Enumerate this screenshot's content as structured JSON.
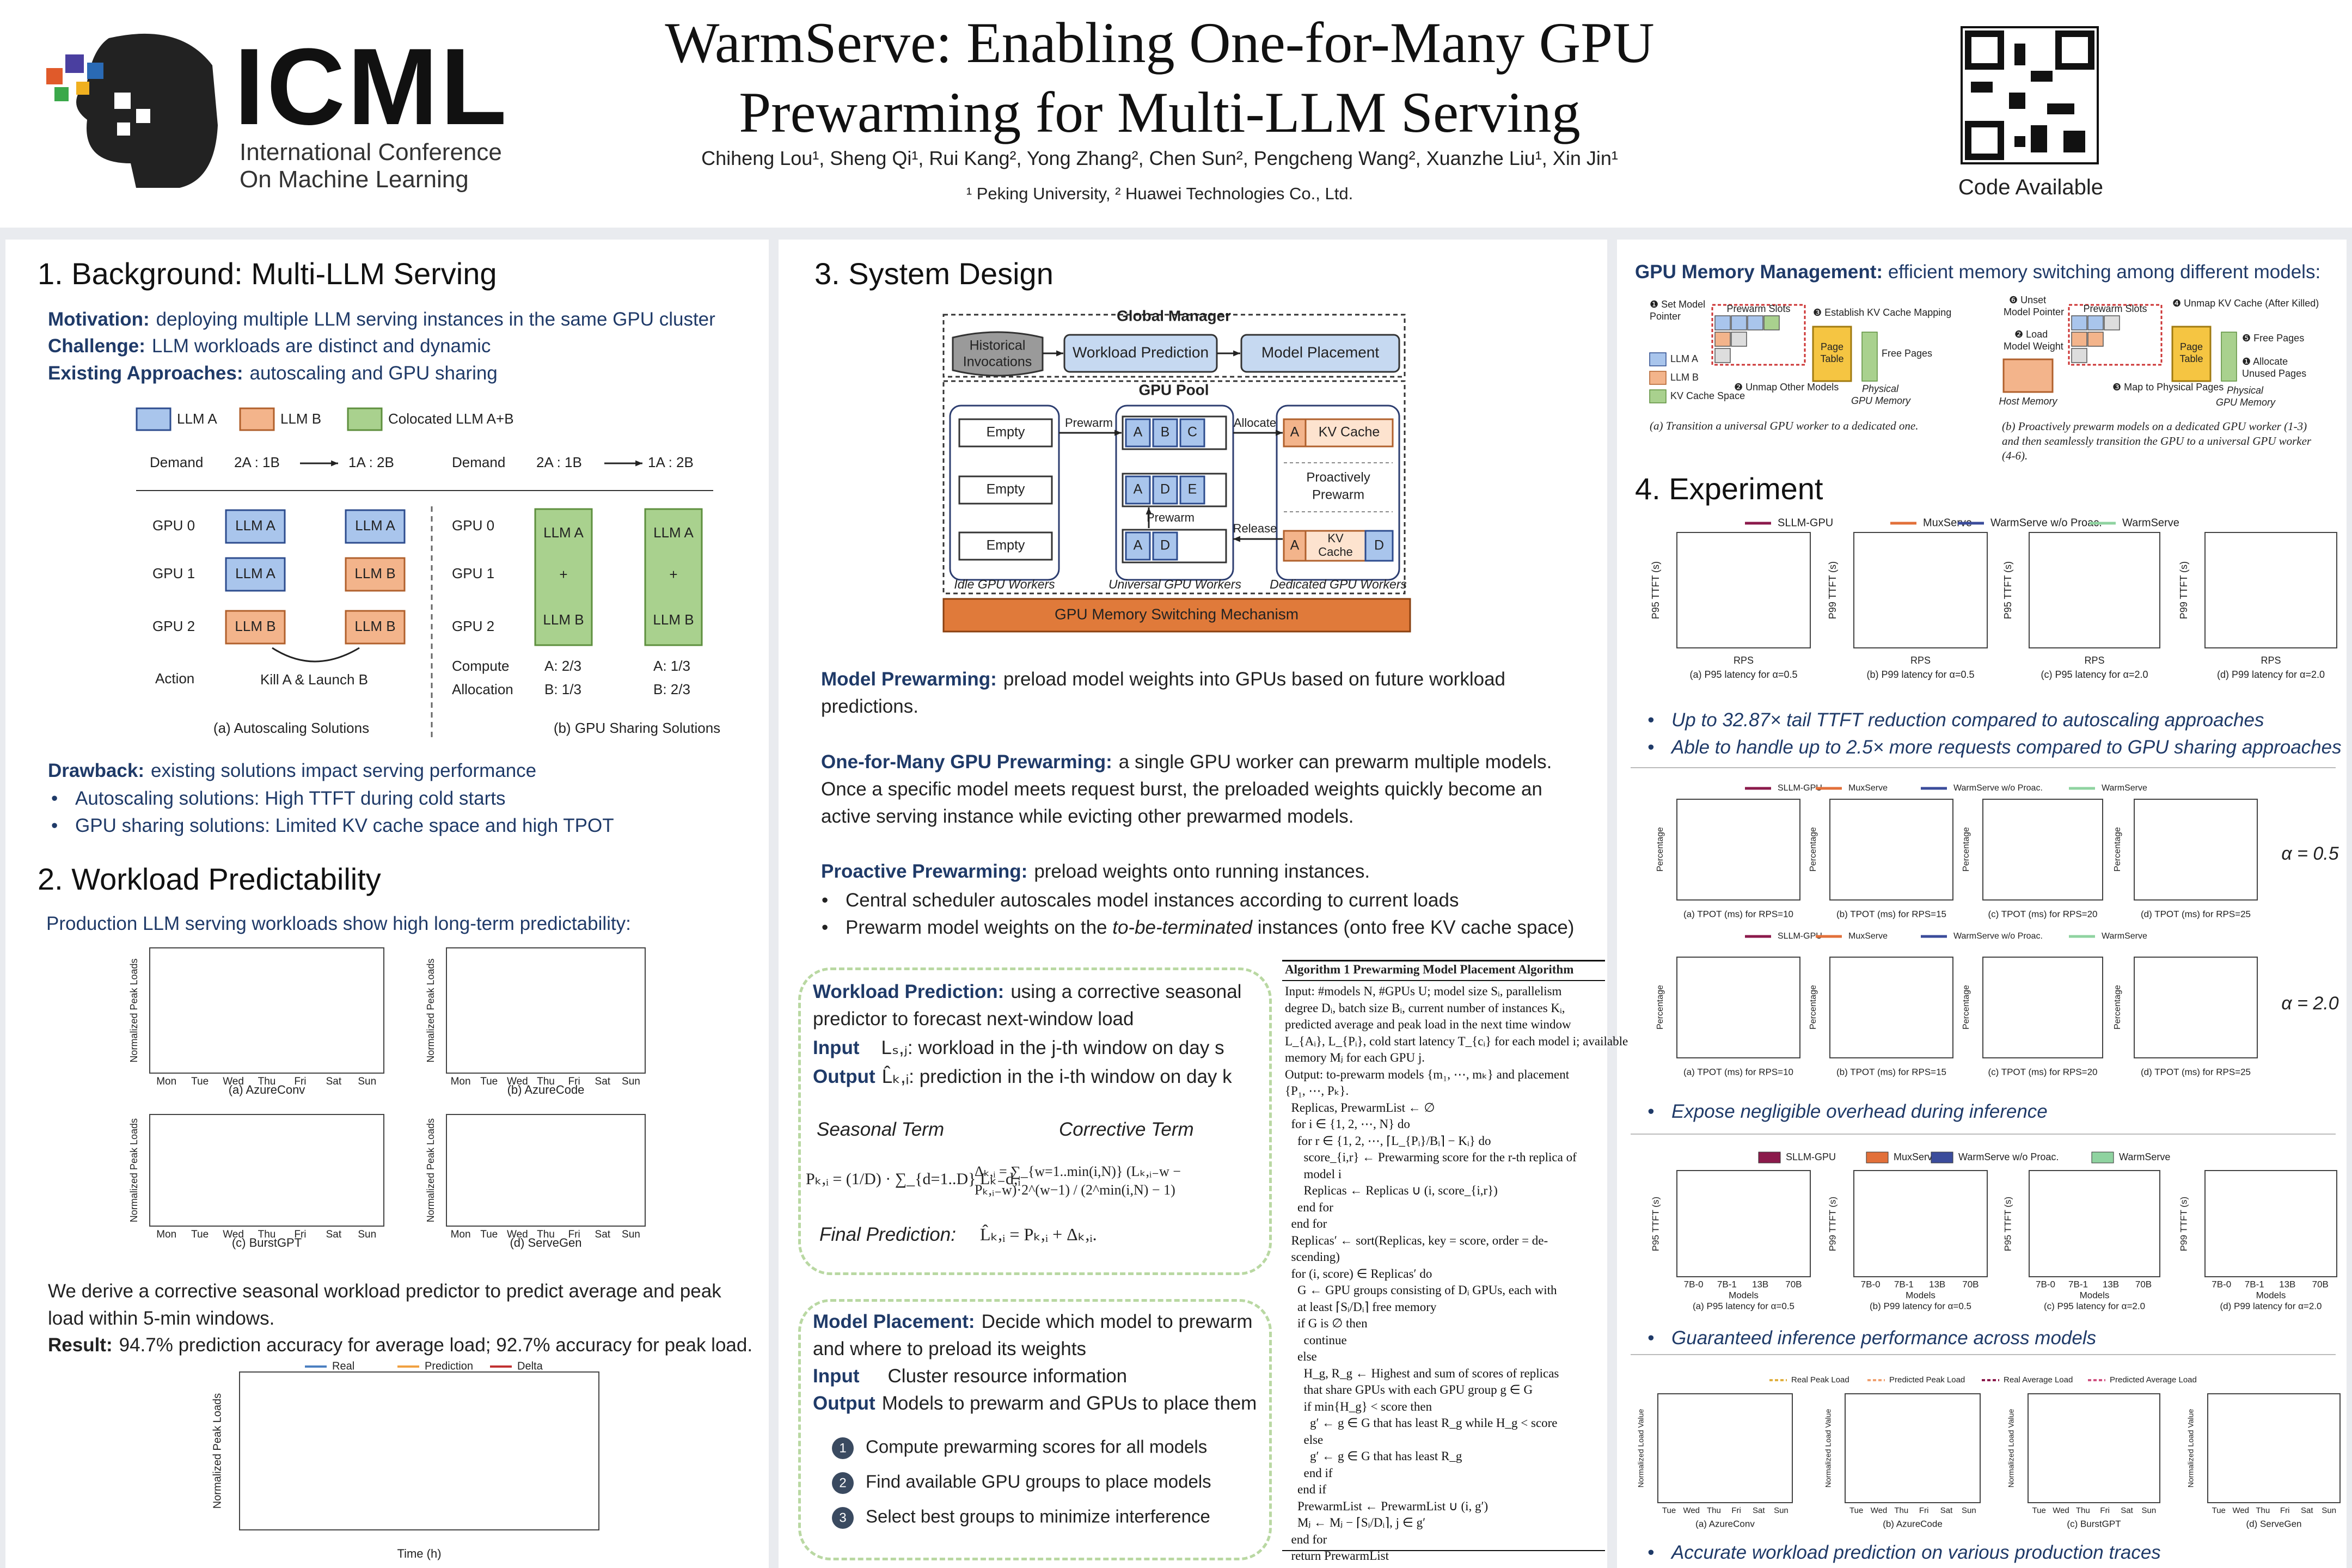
{
  "header": {
    "logo": "ICML",
    "logo_sub": [
      "International Conference",
      "On Machine Learning"
    ],
    "title": [
      "WarmServe: Enabling One-for-Many GPU",
      "Prewarming for Multi-LLM Serving"
    ],
    "authors": "Chiheng Lou¹, Sheng Qi¹, Rui Kang², Yong Zhang², Chen Sun², Pengcheng Wang², Xuanzhe Liu¹, Xin Jin¹",
    "affiliations": "¹ Peking University, ² Huawei Technologies Co., Ltd.",
    "code": "Code Available"
  },
  "background": {
    "heading": "1. Background: Multi-LLM Serving",
    "intro": [
      {
        "label": "Motivation:",
        "text": "deploying multiple LLM serving instances in the same GPU cluster"
      },
      {
        "label": "Challenge:",
        "text": "LLM workloads are distinct and dynamic"
      },
      {
        "label": "Existing Approaches:",
        "text": "autoscaling and GPU sharing"
      }
    ],
    "figure": {
      "legend": [
        "LLM A",
        "LLM B",
        "Colocated LLM A+B"
      ],
      "demand": "Demand",
      "ratio_from": "2A : 1B",
      "ratio_to": "1A : 2B",
      "gpus": [
        "GPU 0",
        "GPU 1",
        "GPU 2"
      ],
      "plus": "+",
      "action": "Action",
      "kill": "Kill A & Launch B",
      "compute": "Compute",
      "allocation": "Allocation",
      "alloc_from": [
        "A: 2/3",
        "B: 1/3"
      ],
      "alloc_to": [
        "A: 1/3",
        "B: 2/3"
      ],
      "captions": [
        "(a) Autoscaling Solutions",
        "(b) GPU Sharing Solutions"
      ]
    },
    "drawback": {
      "label": "Drawback:",
      "text": "existing solutions impact serving performance"
    },
    "bullets": [
      "Autoscaling solutions: High TTFT during cold starts",
      "GPU sharing solutions: Limited KV cache space and high TPOT"
    ]
  },
  "workload": {
    "heading": "2. Workload Predictability",
    "intro": "Production LLM serving workloads show high long-term predictability:",
    "y_label": "Normalized Peak Loads",
    "days": [
      "Mon",
      "Tue",
      "Wed",
      "Thu",
      "Fri",
      "Sat",
      "Sun"
    ],
    "captions": [
      "(a) AzureConv",
      "(b) AzureCode",
      "(c) BurstGPT",
      "(d) ServeGen"
    ],
    "para": "We derive a corrective seasonal workload predictor to predict average and peak load within 5-min windows.",
    "result": {
      "label": "Result:",
      "text": "94.7% prediction accuracy for average load; 92.7% accuracy for peak load."
    },
    "chart": {
      "legend": [
        "Real",
        "Prediction",
        "Delta"
      ],
      "x_label": "Time (h)",
      "y_label": "Normalized Peak Loads"
    }
  },
  "design": {
    "heading": "3. System Design",
    "diagram": {
      "global_manager": "Global Manager",
      "historical": [
        "Historical",
        "Invocations"
      ],
      "prediction": "Workload Prediction",
      "placement": "Model Placement",
      "gpu_pool": "GPU Pool",
      "empty": "Empty",
      "prewarm": "Prewarm",
      "allocate": "Allocate",
      "release": "Release",
      "kv_cache": "KV Cache",
      "kv_split": [
        "KV",
        "Cache"
      ],
      "proactive": [
        "Proactively",
        "Prewarm"
      ],
      "slots_1": [
        "A",
        "B",
        "C"
      ],
      "slots_2": [
        "A",
        "D",
        "E"
      ],
      "slots_3": [
        "A",
        "D"
      ],
      "ded_d": "D",
      "groups": [
        "Idle GPU Workers",
        "Universal GPU Workers",
        "Dedicated GPU Workers"
      ],
      "mechanism": "GPU Memory Switching Mechanism"
    },
    "paras": [
      {
        "label": "Model Prewarming:",
        "text": "preload model weights into GPUs based on future workload predictions."
      },
      {
        "label": "One-for-Many GPU Prewarming:",
        "text": "a single GPU worker can prewarm multiple models. Once a specific model meets request burst, the preloaded weights quickly become an active serving instance while evicting other prewarmed models."
      },
      {
        "label": "Proactive Prewarming:",
        "text": "preload weights onto running instances."
      }
    ],
    "bullets": [
      "Central scheduler autoscales model instances according to current loads",
      {
        "pre": "Prewarm model weights on the ",
        "em": "to-be-terminated",
        "post": " instances (onto free KV cache space)"
      }
    ],
    "prediction_box": {
      "label": "Workload Prediction:",
      "text": "using a corrective seasonal predictor to forecast next-window load",
      "input_label": "Input",
      "input": "Lₛ,ⱼ: workload in the j-th window on day s",
      "output_label": "Output",
      "output": "L̂ₖ,ᵢ: prediction in the i-th window on day k",
      "seasonal": "Seasonal Term",
      "corrective": "Corrective Term",
      "seasonal_formula": "Pₖ,ᵢ = (1/D) · ∑_{d=1..D} Lₖ₋d,ᵢ",
      "corrective_formula": "Δₖ,ᵢ = ∑_{w=1..min(i,N)} (Lₖ,ᵢ₋w − Pₖ,ᵢ₋w)·2^(w−1) / (2^min(i,N) − 1)",
      "final_label": "Final Prediction:",
      "final_formula": "L̂ₖ,ᵢ = Pₖ,ᵢ + Δₖ,ᵢ."
    },
    "placement_box": {
      "label": "Model Placement:",
      "text": "Decide which model to prewarm and where to preload its weights",
      "input_label": "Input",
      "input": "Cluster resource information",
      "output_label": "Output",
      "output": "Models to prewarm and GPUs to place them",
      "steps": [
        "Compute prewarming scores for all models",
        "Find available GPU groups to place models",
        "Select best groups to minimize interference"
      ],
      "step_numbers": [
        "1",
        "2",
        "3"
      ]
    },
    "algorithm": {
      "title": "Algorithm 1 Prewarming Model Placement Algorithm",
      "lines": [
        "Input: #models N, #GPUs U; model size Sᵢ, parallelism",
        "degree Dᵢ, batch size Bᵢ, current number of instances Kᵢ,",
        "predicted average and peak load in the next time window",
        "L_{Aᵢ}, L_{Pᵢ}, cold start latency T_{cᵢ} for each model i; available",
        "memory Mⱼ for each GPU j.",
        "Output: to-prewarm models {m₁, ⋯, mₖ} and placement",
        "{P₁, ⋯, Pₖ}.",
        "  Replicas, PrewarmList ← ∅",
        "  for i ∈ {1, 2, ⋯, N} do",
        "    for r ∈ {1, 2, ⋯, ⌈L_{Pᵢ}/Bᵢ⌉ − Kᵢ} do",
        "      score_{i,r} ← Prewarming score for the r-th replica of",
        "      model i",
        "      Replicas ← Replicas ∪ (i, score_{i,r})",
        "    end for",
        "  end for",
        "  Replicas′ ← sort(Replicas, key = score, order = de-",
        "  scending)",
        "  for (i, score) ∈ Replicas′ do",
        "    G ← GPU groups consisting of Dᵢ GPUs, each with",
        "    at least ⌈Sᵢ/Dᵢ⌉ free memory",
        "    if G is ∅ then",
        "      continue",
        "    else",
        "      H_g, R_g ← Highest and sum of scores of replicas",
        "      that share GPUs with each GPU group g ∈ G",
        "      if min{H_g} < score then",
        "        g′ ← g ∈ G that has least R_g while H_g < score",
        "      else",
        "        g′ ← g ∈ G that has least R_g",
        "      end if",
        "    end if",
        "    PrewarmList ← PrewarmList ∪ (i, g′)",
        "    Mⱼ ← Mⱼ − ⌈Sᵢ/Dᵢ⌉, j ∈ g′",
        "  end for",
        "  return PrewarmList"
      ]
    }
  },
  "memory": {
    "label": "GPU Memory Management:",
    "text": "efficient memory switching among different models:",
    "a": {
      "set_pointer": [
        "❶ Set Model",
        "Pointer"
      ],
      "slots": "Prewarm Slots",
      "establish": "❸ Establish KV Cache Mapping",
      "page_table": [
        "Page",
        "Table"
      ],
      "free_pages": "Free Pages",
      "unmap": "❷ Unmap Other Models",
      "physical": [
        "Physical",
        "GPU Memory"
      ],
      "legend": [
        "LLM A",
        "LLM B",
        "KV Cache Space"
      ],
      "caption": "(a) Transition a universal GPU worker to a dedicated one."
    },
    "b": {
      "unset_pointer": [
        "❻ Unset",
        "Model Pointer"
      ],
      "slots": "Prewarm Slots",
      "unmap_kv": "❹ Unmap KV Cache (After Killed)",
      "load": [
        "❷ Load",
        "Model Weight"
      ],
      "page_table": [
        "Page",
        "Table"
      ],
      "free_pages": "❺ Free Pages",
      "allocate": [
        "❶ Allocate",
        "Unused Pages"
      ],
      "host": "Host Memory",
      "map": "❸ Map to Physical Pages",
      "physical": [
        "Physical",
        "GPU Memory"
      ],
      "caption": [
        "(b) Proactively prewarm models on a dedicated GPU worker (1-3)",
        "and then seamlessly transition the GPU to a universal GPU worker",
        "(4-6)."
      ]
    }
  },
  "experiment": {
    "heading": "4. Experiment",
    "series": [
      {
        "name": "SLLM-GPU",
        "color": "#8b1a4b"
      },
      {
        "name": "MuxServe",
        "color": "#e2703a"
      },
      {
        "name": "WarmServe w/o Proac.",
        "color": "#3b4c9b"
      },
      {
        "name": "WarmServe",
        "color": "#8fd3a0"
      }
    ],
    "ttft": {
      "y_labels": [
        "P95 TTFT (s)",
        "P99 TTFT (s)",
        "P95 TTFT (s)",
        "P99 TTFT (s)"
      ],
      "x_label": "RPS",
      "captions": [
        "(a) P95 latency for α=0.5",
        "(b) P99 latency for α=0.5",
        "(c) P95 latency for α=2.0",
        "(d) P99 latency for α=2.0"
      ]
    },
    "bullets_1": [
      "Up to 32.87× tail TTFT reduction compared to autoscaling approaches",
      "Able to handle up to 2.5× more requests compared to GPU sharing approaches"
    ],
    "cdf": {
      "y_label": "Percentage",
      "captions": [
        "(a) TPOT (ms) for RPS=10",
        "(b) TPOT (ms) for RPS=15",
        "(c) TPOT (ms) for RPS=20",
        "(d) TPOT (ms) for RPS=25"
      ],
      "alphas": [
        "α = 0.5",
        "α = 2.0"
      ]
    },
    "bullet_2": "Expose negligible overhead during inference",
    "bars": {
      "y_labels": [
        "P95 TTFT (s)",
        "P99 TTFT (s)",
        "P95 TTFT (s)",
        "P99 TTFT (s)"
      ],
      "categories": [
        "7B-0",
        "7B-1",
        "13B",
        "70B"
      ],
      "x_label": "Models",
      "captions": [
        "(a) P95 latency for α=0.5",
        "(b) P99 latency for α=0.5",
        "(c) P95 latency for α=2.0",
        "(d) P99 latency for α=2.0"
      ]
    },
    "bullet_3": "Guaranteed inference performance across models",
    "pred": {
      "legend": [
        {
          "name": "Real Peak Load",
          "color": "#e0b040"
        },
        {
          "name": "Predicted Peak Load",
          "color": "#f0a070"
        },
        {
          "name": "Real Average Load",
          "color": "#8b1a4b"
        },
        {
          "name": "Predicted Average Load",
          "color": "#d05080"
        }
      ],
      "y_label": "Normalized Load Value",
      "days": [
        "Tue",
        "Wed",
        "Thu",
        "Fri",
        "Sat",
        "Sun"
      ],
      "captions": [
        "(a) AzureConv",
        "(b) AzureCode",
        "(c) BurstGPT",
        "(d) ServeGen"
      ]
    },
    "bullet_4": "Accurate workload prediction on various production traces"
  }
}
